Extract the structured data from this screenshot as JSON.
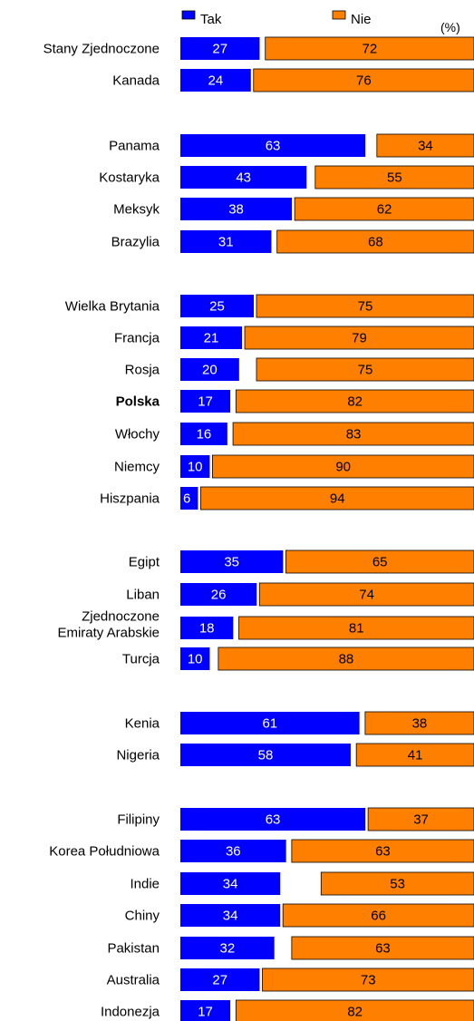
{
  "chart_data": {
    "type": "bar",
    "orientation": "horizontal",
    "stacked": true,
    "unit": "(%)",
    "legend": {
      "position": "top",
      "items": [
        {
          "name": "Tak",
          "color": "#0000ff"
        },
        {
          "name": "Nie",
          "color": "#ff8000"
        }
      ]
    },
    "xlim": [
      0,
      100
    ],
    "grid": false,
    "groups": [
      {
        "rows": [
          {
            "label": "Stany Zjednoczone",
            "tak": 27,
            "nie": 72
          },
          {
            "label": "Kanada",
            "tak": 24,
            "nie": 76
          }
        ]
      },
      {
        "rows": [
          {
            "label": "Panama",
            "tak": 63,
            "nie": 34
          },
          {
            "label": "Kostaryka",
            "tak": 43,
            "nie": 55
          },
          {
            "label": "Meksyk",
            "tak": 38,
            "nie": 62
          },
          {
            "label": "Brazylia",
            "tak": 31,
            "nie": 68
          }
        ]
      },
      {
        "rows": [
          {
            "label": "Wielka Brytania",
            "tak": 25,
            "nie": 75
          },
          {
            "label": "Francja",
            "tak": 21,
            "nie": 79
          },
          {
            "label": "Rosja",
            "tak": 20,
            "nie": 75
          },
          {
            "label": "Polska",
            "tak": 17,
            "nie": 82,
            "bold": true
          },
          {
            "label": "Włochy",
            "tak": 16,
            "nie": 83
          },
          {
            "label": "Niemcy",
            "tak": 10,
            "nie": 90
          },
          {
            "label": "Hiszpania",
            "tak": 6,
            "nie": 94
          }
        ]
      },
      {
        "rows": [
          {
            "label": "Egipt",
            "tak": 35,
            "nie": 65
          },
          {
            "label": "Liban",
            "tak": 26,
            "nie": 74
          },
          {
            "label": "Zjednoczone Emiraty Arabskie",
            "label_lines": [
              "Zjednoczone",
              "Emiraty Arabskie"
            ],
            "tak": 18,
            "nie": 81
          },
          {
            "label": "Turcja",
            "tak": 10,
            "nie": 88
          }
        ]
      },
      {
        "rows": [
          {
            "label": "Kenia",
            "tak": 61,
            "nie": 38
          },
          {
            "label": "Nigeria",
            "tak": 58,
            "nie": 41
          }
        ]
      },
      {
        "rows": [
          {
            "label": "Filipiny",
            "tak": 63,
            "nie": 37
          },
          {
            "label": "Korea Południowa",
            "tak": 36,
            "nie": 63
          },
          {
            "label": "Indie",
            "tak": 34,
            "nie": 53
          },
          {
            "label": "Chiny",
            "tak": 34,
            "nie": 66
          },
          {
            "label": "Pakistan",
            "tak": 32,
            "nie": 63
          },
          {
            "label": "Australia",
            "tak": 27,
            "nie": 73
          },
          {
            "label": "Indonezja",
            "tak": 17,
            "nie": 82
          }
        ]
      }
    ]
  }
}
